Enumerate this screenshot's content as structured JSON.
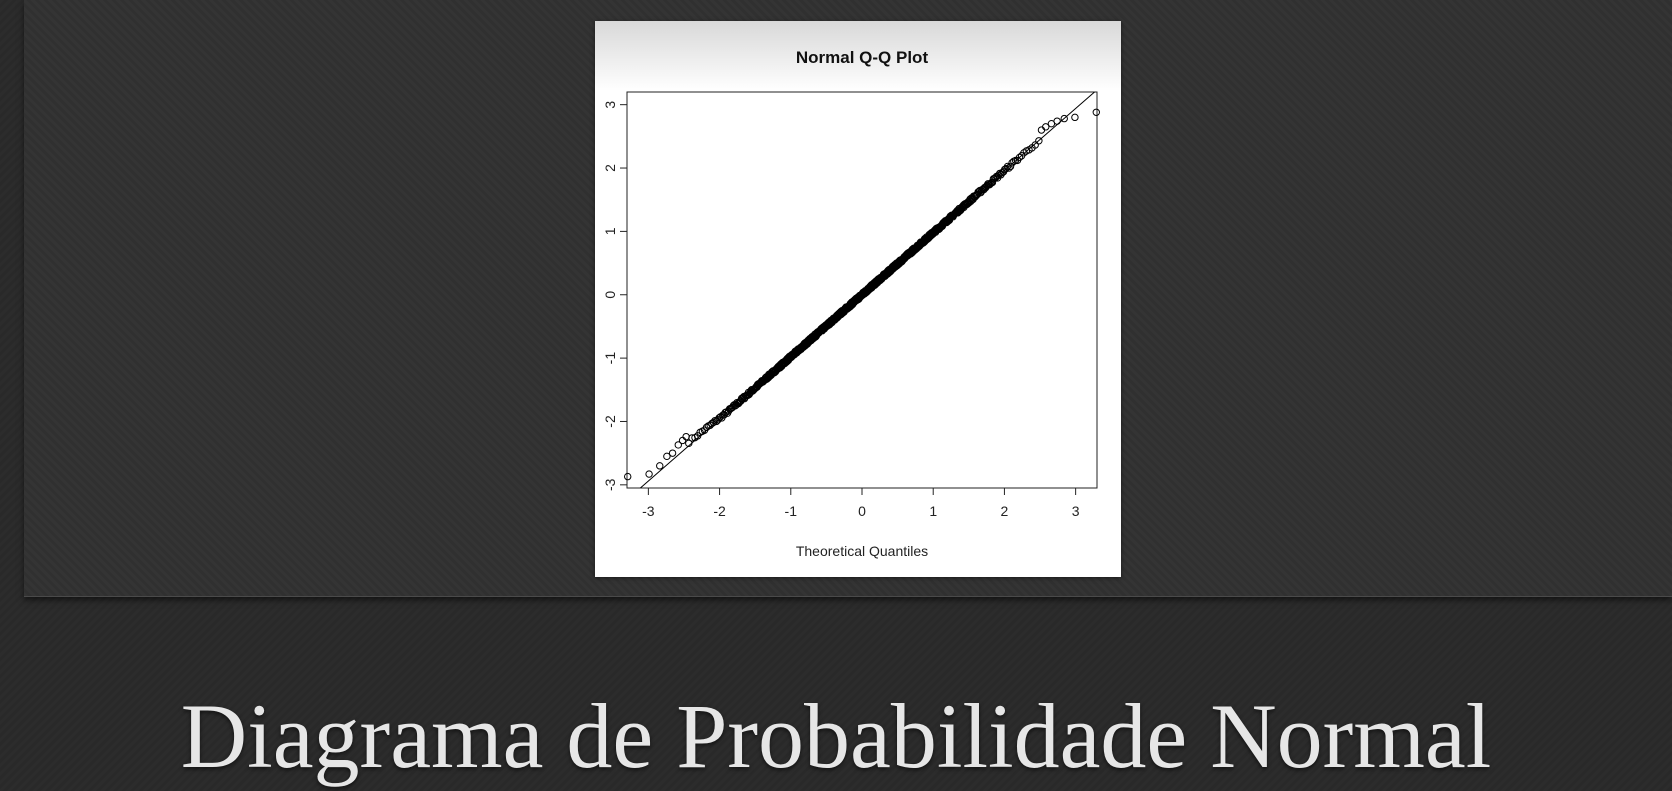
{
  "slide": {
    "title": "Diagrama de Probabilidade Normal"
  },
  "chart_data": {
    "type": "scatter",
    "title": "Normal Q-Q Plot",
    "xlabel": "Theoretical Quantiles",
    "ylabel": "",
    "xlim": [
      -3.3,
      3.3
    ],
    "ylim": [
      -3.05,
      3.2
    ],
    "x_ticks": [
      "-3",
      "-2",
      "-1",
      "0",
      "1",
      "2",
      "3"
    ],
    "y_ticks": [
      "-3",
      "-2",
      "-1",
      "0",
      "1",
      "2",
      "3"
    ],
    "reference_line": {
      "slope": 0.98,
      "intercept": 0.0
    },
    "sample_size": 1000,
    "tail_points": [
      {
        "x": -3.29,
        "y": -2.87
      },
      {
        "x": -2.99,
        "y": -2.83
      },
      {
        "x": -2.84,
        "y": -2.7
      },
      {
        "x": -2.74,
        "y": -2.55
      },
      {
        "x": -2.66,
        "y": -2.5
      },
      {
        "x": -2.58,
        "y": -2.37
      },
      {
        "x": -2.52,
        "y": -2.3
      },
      {
        "x": -2.47,
        "y": -2.24
      },
      {
        "x": 2.52,
        "y": 2.6
      },
      {
        "x": 2.58,
        "y": 2.65
      },
      {
        "x": 2.66,
        "y": 2.7
      },
      {
        "x": 2.74,
        "y": 2.74
      },
      {
        "x": 2.84,
        "y": 2.78
      },
      {
        "x": 2.99,
        "y": 2.8
      },
      {
        "x": 3.29,
        "y": 2.88
      }
    ],
    "grid": false,
    "colors": {
      "points": "#000000",
      "line": "#000000",
      "background": "#ffffff"
    }
  }
}
